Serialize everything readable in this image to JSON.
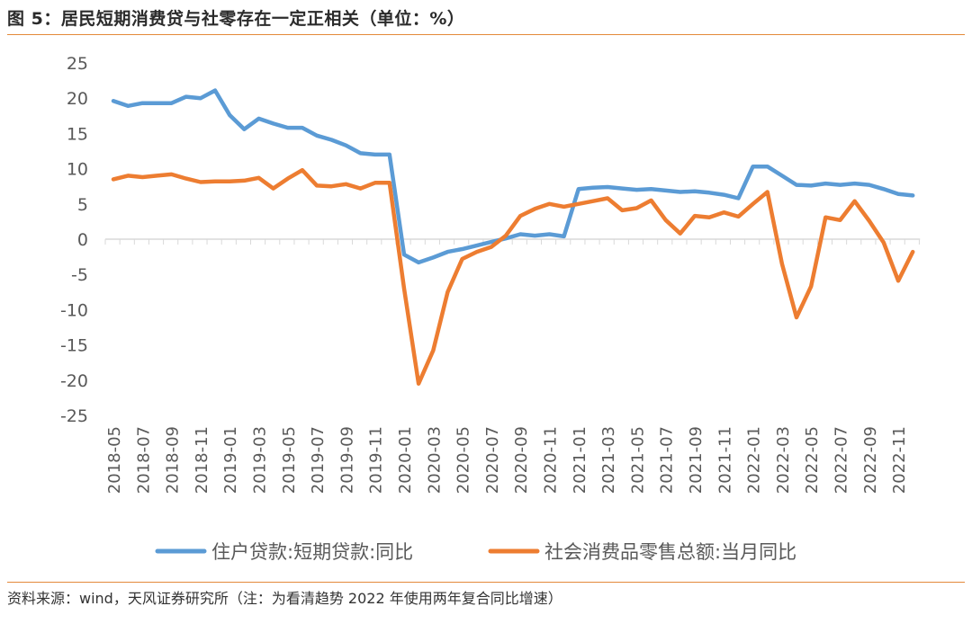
{
  "header": {
    "title": "图 5：居民短期消费贷与社零存在一定正相关（单位：%）"
  },
  "footer": {
    "source": "资料来源：wind，天风证券研究所（注：为看清趋势 2022 年使用两年复合同比增速）"
  },
  "chart_data": {
    "type": "line",
    "x": [
      "2018-05",
      "2018-06",
      "2018-07",
      "2018-08",
      "2018-09",
      "2018-10",
      "2018-11",
      "2018-12",
      "2019-01",
      "2019-02",
      "2019-03",
      "2019-04",
      "2019-05",
      "2019-06",
      "2019-07",
      "2019-08",
      "2019-09",
      "2019-10",
      "2019-11",
      "2019-12",
      "2020-01",
      "2020-02",
      "2020-03",
      "2020-04",
      "2020-05",
      "2020-06",
      "2020-07",
      "2020-08",
      "2020-09",
      "2020-10",
      "2020-11",
      "2020-12",
      "2021-01",
      "2021-02",
      "2021-03",
      "2021-04",
      "2021-05",
      "2021-06",
      "2021-07",
      "2021-08",
      "2021-09",
      "2021-10",
      "2021-11",
      "2021-12",
      "2022-01",
      "2022-02",
      "2022-03",
      "2022-04",
      "2022-05",
      "2022-06",
      "2022-07",
      "2022-08",
      "2022-09",
      "2022-10",
      "2022-11",
      "2022-12"
    ],
    "tick_labels": [
      "2018-05",
      "2018-07",
      "2018-09",
      "2018-11",
      "2019-01",
      "2019-03",
      "2019-05",
      "2019-07",
      "2019-09",
      "2019-11",
      "2020-01",
      "2020-03",
      "2020-05",
      "2020-07",
      "2020-09",
      "2020-11",
      "2021-01",
      "2021-03",
      "2021-05",
      "2021-07",
      "2021-09",
      "2021-11",
      "2022-01",
      "2022-03",
      "2022-05",
      "2022-07",
      "2022-09",
      "2022-11"
    ],
    "y_ticks": [
      "25",
      "20",
      "15",
      "10",
      "5",
      "0",
      "-5",
      "-10",
      "-15",
      "-20",
      "-25"
    ],
    "ylim": [
      -25,
      25
    ],
    "series": [
      {
        "name": "住户贷款:短期贷款:同比",
        "color": "#5b9bd5",
        "values": [
          19.6,
          18.9,
          19.3,
          19.3,
          19.3,
          20.2,
          20.0,
          21.1,
          17.6,
          15.6,
          17.1,
          16.4,
          15.8,
          15.8,
          14.7,
          14.1,
          13.3,
          12.2,
          12.0,
          12.0,
          -2.2,
          -3.3,
          -2.6,
          -1.8,
          -1.4,
          -0.9,
          -0.4,
          0.1,
          0.7,
          0.5,
          0.7,
          0.4,
          7.1,
          7.3,
          7.4,
          7.2,
          7.0,
          7.1,
          6.9,
          6.7,
          6.8,
          6.6,
          6.3,
          5.8,
          10.3,
          10.3,
          9.0,
          7.7,
          7.6,
          7.9,
          7.7,
          7.9,
          7.7,
          7.1,
          6.4,
          6.2
        ]
      },
      {
        "name": "社会消费品零售总额:当月同比",
        "color": "#ed7d31",
        "values": [
          8.5,
          9.0,
          8.8,
          9.0,
          9.2,
          8.6,
          8.1,
          8.2,
          8.2,
          8.3,
          8.7,
          7.2,
          8.6,
          9.8,
          7.6,
          7.5,
          7.8,
          7.2,
          8.0,
          8.0,
          -7.0,
          -20.5,
          -15.8,
          -7.5,
          -2.8,
          -1.8,
          -1.1,
          0.5,
          3.3,
          4.3,
          5.0,
          4.6,
          5.0,
          5.4,
          5.8,
          4.1,
          4.4,
          5.5,
          2.7,
          0.8,
          3.3,
          3.1,
          3.8,
          3.2,
          5.0,
          6.7,
          -3.5,
          -11.1,
          -6.7,
          3.1,
          2.7,
          5.4,
          2.6,
          -0.5,
          -5.9,
          -1.8
        ]
      }
    ],
    "legend_position": "bottom",
    "grid": false
  }
}
